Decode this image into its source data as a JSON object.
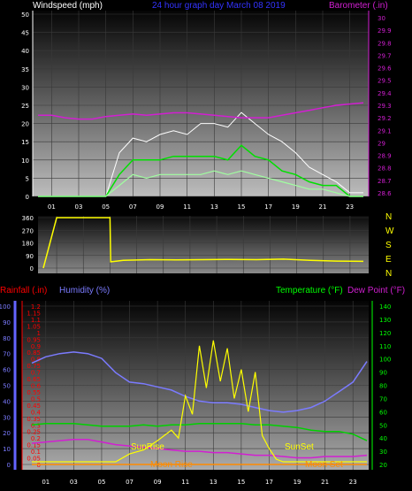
{
  "header": {
    "left_label": "Windspeed (mph)",
    "title": "24 hour graph day   March 08 2019",
    "right_label": "Barometer (.in)"
  },
  "compass": {
    "letters": [
      "N",
      "W",
      "S",
      "E",
      "N"
    ]
  },
  "panel3": {
    "rainfall_label": "Rainfall (.in)",
    "humidity_label": "Humidity (%)",
    "temperature_label": "Temperature (°F)",
    "dewpoint_label": "Dew Point (°F)",
    "annotations": [
      "SunRise",
      "SunSet",
      "Moon Rise",
      "Moon Set"
    ]
  },
  "colors": {
    "wind_gust": "#ffffff",
    "wind_speed": "#00e000",
    "wind_avg": "#a0ffa0",
    "barometer": "#d21fd2",
    "direction": "#ffff00",
    "humidity": "#7b7bff",
    "temperature": "#00d000",
    "dewpoint": "#d21fd2",
    "solar": "#ffff00",
    "rain": "#ff8c00",
    "rain_axis": "#ff0000",
    "humidity_axis": "#6464ff",
    "temp_axis": "#00ff00"
  },
  "chart_data": [
    {
      "type": "line",
      "name": "wind-barometer",
      "x_ticks": [
        "01",
        "03",
        "05",
        "07",
        "09",
        "11",
        "13",
        "15",
        "17",
        "19",
        "21",
        "23"
      ],
      "y_left_ticks": [
        "0",
        "5",
        "10",
        "15",
        "20",
        "25",
        "30",
        "35",
        "40",
        "45",
        "50"
      ],
      "y_right_ticks": [
        "28.6",
        "28.7",
        "28.8",
        "28.9",
        "29",
        "29.1",
        "29.2",
        "29.3",
        "29.4",
        "29.5",
        "29.6",
        "29.7",
        "29.8",
        "29.9",
        "30"
      ],
      "ylim_left": [
        0,
        50
      ],
      "ylim_right": [
        28.6,
        30
      ],
      "series": [
        {
          "key": "gust",
          "x": [
            0,
            1,
            2,
            3,
            4,
            5,
            6,
            7,
            8,
            9,
            10,
            11,
            12,
            13,
            14,
            15,
            16,
            17,
            18,
            19,
            20,
            21,
            22,
            23,
            24
          ],
          "values": [
            0,
            0,
            0,
            0,
            0,
            0,
            12,
            16,
            15,
            17,
            18,
            17,
            20,
            20,
            19,
            23,
            20,
            17,
            15,
            12,
            8,
            6,
            4,
            1,
            1
          ]
        },
        {
          "key": "speed",
          "x": [
            0,
            1,
            2,
            3,
            4,
            5,
            6,
            7,
            8,
            9,
            10,
            11,
            12,
            13,
            14,
            15,
            16,
            17,
            18,
            19,
            20,
            21,
            22,
            23,
            24
          ],
          "values": [
            0,
            0,
            0,
            0,
            0,
            0,
            6,
            10,
            10,
            10,
            11,
            11,
            11,
            11,
            10,
            14,
            11,
            10,
            7,
            6,
            4,
            3,
            3,
            0,
            0
          ]
        },
        {
          "key": "average",
          "x": [
            0,
            1,
            2,
            3,
            4,
            5,
            6,
            7,
            8,
            9,
            10,
            11,
            12,
            13,
            14,
            15,
            16,
            17,
            18,
            19,
            20,
            21,
            22,
            23,
            24
          ],
          "values": [
            0,
            0,
            0,
            0,
            0,
            0,
            3,
            6,
            5,
            6,
            6,
            6,
            6,
            7,
            6,
            7,
            6,
            5,
            4,
            3,
            2,
            2,
            1,
            0,
            0
          ]
        },
        {
          "key": "barometer",
          "x": [
            0,
            1,
            2,
            3,
            4,
            5,
            6,
            7,
            8,
            9,
            10,
            11,
            12,
            13,
            14,
            15,
            16,
            17,
            18,
            19,
            20,
            21,
            22,
            23,
            24
          ],
          "values": [
            29.22,
            29.22,
            29.2,
            29.19,
            29.19,
            29.21,
            29.22,
            29.23,
            29.22,
            29.23,
            29.24,
            29.24,
            29.23,
            29.22,
            29.21,
            29.2,
            29.2,
            29.2,
            29.22,
            29.24,
            29.26,
            29.28,
            29.3,
            29.31,
            29.32
          ]
        }
      ]
    },
    {
      "type": "line",
      "name": "wind-direction",
      "y_ticks": [
        "0",
        "90",
        "180",
        "270",
        "360"
      ],
      "ylim": [
        0,
        360
      ],
      "series": [
        {
          "key": "direction",
          "x": [
            0,
            1,
            2,
            3,
            4,
            5,
            5.05,
            6,
            8,
            10,
            12,
            14,
            16,
            18,
            20,
            22,
            24
          ],
          "values": [
            0,
            360,
            360,
            360,
            360,
            360,
            45,
            55,
            60,
            58,
            60,
            62,
            60,
            64,
            55,
            50,
            48
          ]
        }
      ]
    },
    {
      "type": "line",
      "name": "humidity-temperature",
      "x_ticks": [
        "01",
        "03",
        "05",
        "07",
        "09",
        "11",
        "13",
        "15",
        "17",
        "19",
        "21",
        "23"
      ],
      "rain_ticks": [
        "0",
        "0.05",
        "0.1",
        "0.15",
        "0.2",
        "0.25",
        "0.3",
        "0.35",
        "0.4",
        "0.45",
        "0.5",
        "0.55",
        "0.6",
        "0.65",
        "0.7",
        "0.75",
        "0.8",
        "0.85",
        "0.9",
        "0.95",
        "1",
        "1.05",
        "1.1",
        "1.15",
        "1.2"
      ],
      "humidity_ticks": [
        "0",
        "10",
        "20",
        "30",
        "40",
        "50",
        "60",
        "70",
        "80",
        "90",
        "100"
      ],
      "temp_ticks": [
        "20",
        "30",
        "40",
        "50",
        "60",
        "70",
        "80",
        "90",
        "100",
        "110",
        "120",
        "130",
        "140"
      ],
      "ylim_rain": [
        0,
        1.2
      ],
      "ylim_humidity": [
        0,
        100
      ],
      "ylim_temp": [
        20,
        140
      ],
      "series": [
        {
          "key": "humidity",
          "x": [
            0,
            1,
            2,
            3,
            4,
            5,
            6,
            7,
            8,
            9,
            10,
            11,
            12,
            13,
            14,
            15,
            16,
            17,
            18,
            19,
            20,
            21,
            22,
            23,
            24
          ],
          "values": [
            64,
            68,
            70,
            71,
            70,
            67,
            58,
            52,
            51,
            49,
            47,
            43,
            40,
            39,
            39,
            38,
            36,
            34,
            33,
            34,
            36,
            40,
            46,
            52,
            65
          ]
        },
        {
          "key": "temperature",
          "x": [
            0,
            1,
            2,
            3,
            4,
            5,
            6,
            7,
            8,
            9,
            10,
            11,
            12,
            13,
            14,
            15,
            16,
            17,
            18,
            19,
            20,
            21,
            22,
            23,
            24
          ],
          "values": [
            50,
            51,
            51,
            51,
            50,
            49,
            49,
            49,
            50,
            49,
            50,
            50,
            51,
            51,
            51,
            51,
            50,
            50,
            49,
            48,
            46,
            45,
            45,
            43,
            38
          ]
        },
        {
          "key": "dewpoint",
          "x": [
            0,
            1,
            2,
            3,
            4,
            5,
            6,
            7,
            8,
            9,
            10,
            11,
            12,
            13,
            14,
            15,
            16,
            17,
            18,
            19,
            20,
            21,
            22,
            23,
            24
          ],
          "values": [
            36,
            37,
            38,
            39,
            39,
            37,
            35,
            34,
            33,
            32,
            31,
            30,
            30,
            29,
            29,
            28,
            27,
            27,
            26,
            25,
            25,
            26,
            26,
            26,
            27
          ]
        },
        {
          "key": "solar",
          "x": [
            0,
            6,
            7,
            8,
            9,
            10,
            10.5,
            11,
            11.5,
            12,
            12.5,
            13,
            13.5,
            14,
            14.5,
            15,
            15.5,
            16,
            16.5,
            17,
            17.5,
            18,
            24
          ],
          "values": [
            22,
            22,
            28,
            31,
            38,
            46,
            40,
            72,
            58,
            110,
            78,
            114,
            83,
            108,
            70,
            92,
            60,
            90,
            42,
            32,
            24,
            22,
            22
          ]
        },
        {
          "key": "rain",
          "x": [
            0,
            24
          ],
          "values": [
            0,
            0
          ]
        }
      ]
    }
  ]
}
